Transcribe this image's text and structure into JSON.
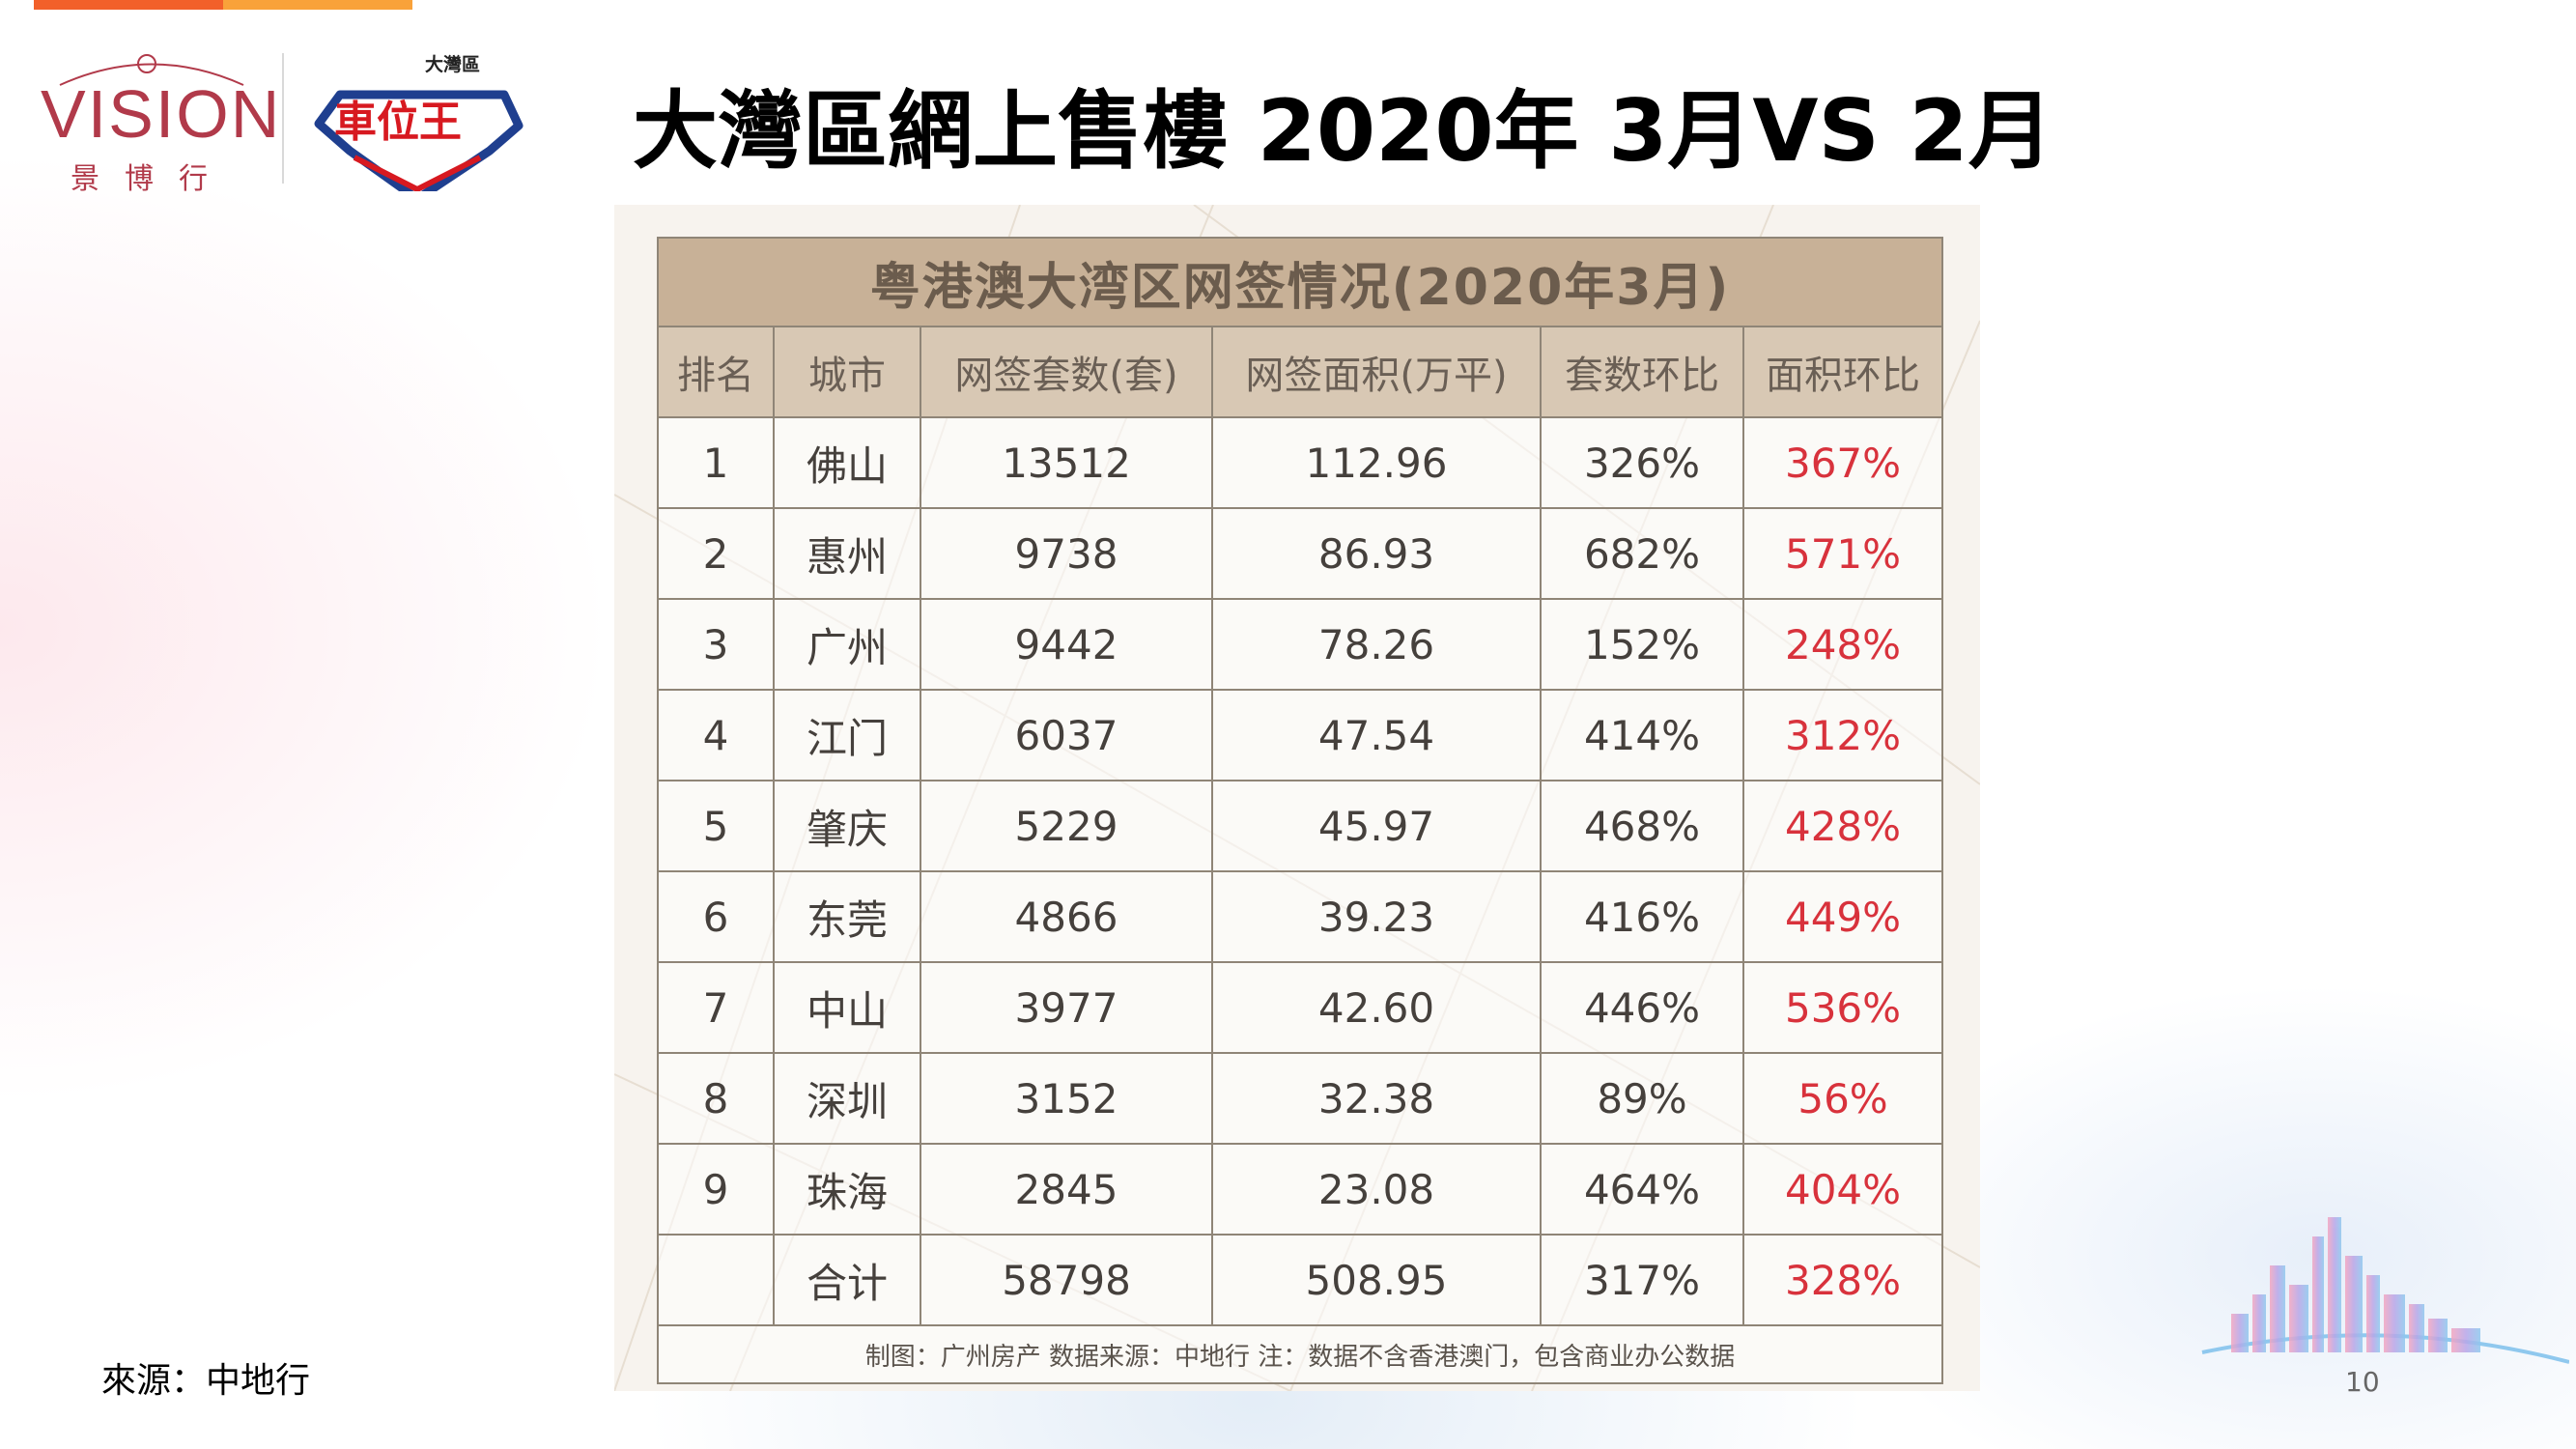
{
  "title": "大灣區網上售樓 2020年 3月VS 2月",
  "logos": {
    "vision_word": "VISION",
    "vision_sub": "景博行",
    "cwk_small": "大灣區",
    "cwk_main": "車位王"
  },
  "table": {
    "caption": "粤港澳大湾区网签情况(2020年3月)",
    "columns": [
      "排名",
      "城市",
      "网签套数(套)",
      "网签面积(万平)",
      "套数环比",
      "面积环比"
    ],
    "rows": [
      [
        "1",
        "佛山",
        "13512",
        "112.96",
        "326%",
        "367%"
      ],
      [
        "2",
        "惠州",
        "9738",
        "86.93",
        "682%",
        "571%"
      ],
      [
        "3",
        "广州",
        "9442",
        "78.26",
        "152%",
        "248%"
      ],
      [
        "4",
        "江门",
        "6037",
        "47.54",
        "414%",
        "312%"
      ],
      [
        "5",
        "肇庆",
        "5229",
        "45.97",
        "468%",
        "428%"
      ],
      [
        "6",
        "东莞",
        "4866",
        "39.23",
        "416%",
        "449%"
      ],
      [
        "7",
        "中山",
        "3977",
        "42.60",
        "446%",
        "536%"
      ],
      [
        "8",
        "深圳",
        "3152",
        "32.38",
        "89%",
        "56%"
      ],
      [
        "9",
        "珠海",
        "2845",
        "23.08",
        "464%",
        "404%"
      ]
    ],
    "total": [
      "",
      "合计",
      "58798",
      "508.95",
      "317%",
      "328%"
    ],
    "note": "制图：广州房产 数据来源：中地行 注：数据不含香港澳门，包含商业办公数据"
  },
  "source": "來源：中地行",
  "page_number": "10",
  "colors": {
    "accent_red": "#d8323c",
    "caption_bg": "#c8b197",
    "header_bg": "#d8c8b4",
    "top_bar_orange": "#f2602a",
    "top_bar_amber": "#f9a23a"
  }
}
